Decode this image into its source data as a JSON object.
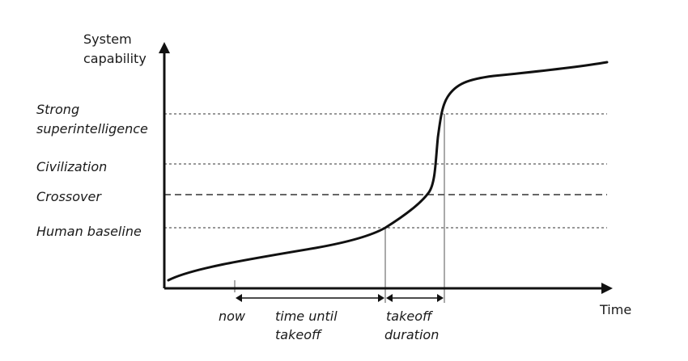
{
  "axes": {
    "y_label_line1": "System",
    "y_label_line2": "capability",
    "x_label": "Time"
  },
  "levels": {
    "strong_line1": "Strong",
    "strong_line2": "superintelligence",
    "civilization": "Civilization",
    "crossover": "Crossover",
    "human_baseline": "Human baseline"
  },
  "timeline": {
    "now": "now",
    "time_until_line1": "time until",
    "time_until_line2": "takeoff",
    "takeoff_line1": "takeoff",
    "takeoff_line2": "duration"
  }
}
